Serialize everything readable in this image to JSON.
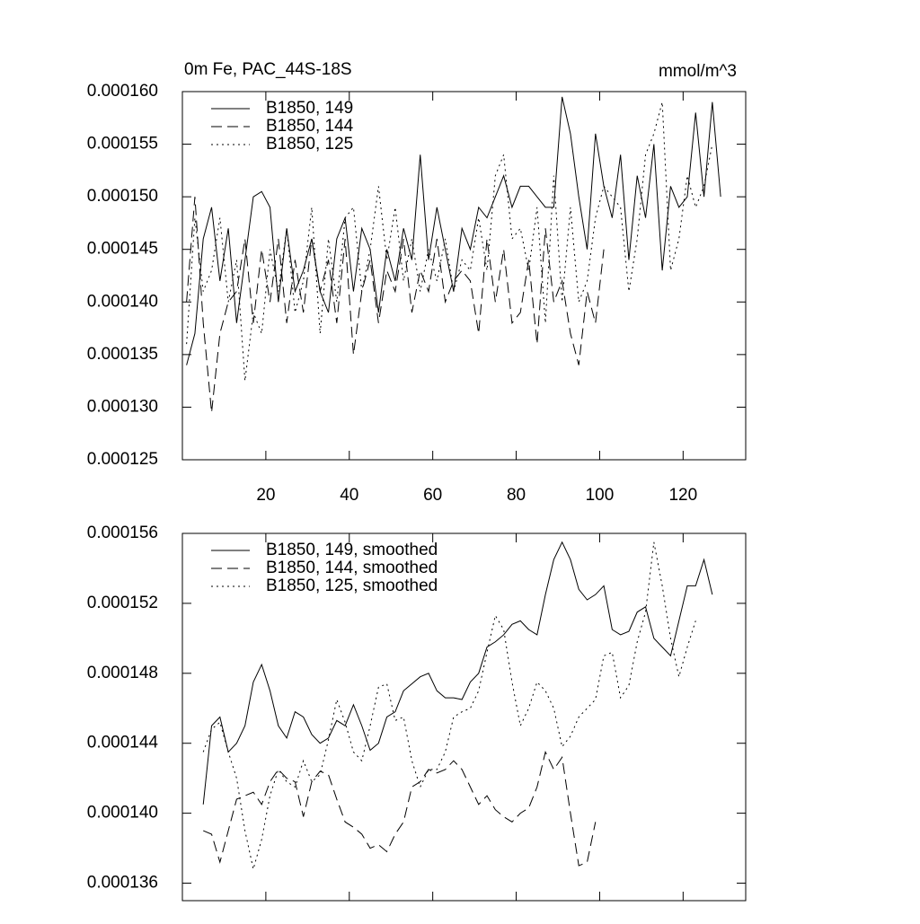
{
  "chart_data": [
    {
      "type": "line",
      "title": "0m Fe, PAC_44S-18S",
      "units_label": "mmol/m^3",
      "x": [
        1,
        3,
        5,
        7,
        9,
        11,
        13,
        15,
        17,
        19,
        21,
        23,
        25,
        27,
        29,
        31,
        33,
        35,
        37,
        39,
        41,
        43,
        45,
        47,
        49,
        51,
        53,
        55,
        57,
        59,
        61,
        63,
        65,
        67,
        69,
        71,
        73,
        75,
        77,
        79,
        81,
        83,
        85,
        87,
        89,
        91,
        93,
        95,
        97,
        99,
        101,
        103,
        105,
        107,
        109,
        111,
        113,
        115,
        117,
        119,
        121,
        123,
        125,
        127,
        129
      ],
      "xlim": [
        0,
        135
      ],
      "xticks": [
        20,
        40,
        60,
        80,
        100,
        120
      ],
      "ylim": [
        0.000125,
        0.00016
      ],
      "yticks": [
        {
          "value": 0.000125,
          "label": "0.000125"
        },
        {
          "value": 0.00013,
          "label": "0.000130"
        },
        {
          "value": 0.000135,
          "label": "0.000135"
        },
        {
          "value": 0.00014,
          "label": "0.000140"
        },
        {
          "value": 0.000145,
          "label": "0.000145"
        },
        {
          "value": 0.00015,
          "label": "0.000150"
        },
        {
          "value": 0.000155,
          "label": "0.000155"
        },
        {
          "value": 0.00016,
          "label": "0.000160"
        }
      ],
      "series": [
        {
          "name": "B1850, 149",
          "color": "#000000",
          "dash": "solid",
          "values": [
            0.000134,
            0.000137,
            0.000146,
            0.000149,
            0.000142,
            0.000147,
            0.000138,
            0.000144,
            0.00015,
            0.0001505,
            0.000149,
            0.00014,
            0.000147,
            0.000141,
            0.000143,
            0.000146,
            0.000141,
            0.000139,
            0.000146,
            0.000148,
            0.000141,
            0.000147,
            0.000145,
            0.000139,
            0.000145,
            0.000142,
            0.000147,
            0.000144,
            0.000154,
            0.000144,
            0.000149,
            0.000145,
            0.000141,
            0.000147,
            0.000145,
            0.000149,
            0.000148,
            0.00015,
            0.000152,
            0.000149,
            0.000151,
            0.000151,
            0.00015,
            0.000149,
            0.000149,
            0.0001595,
            0.000156,
            0.00015,
            0.000145,
            0.000156,
            0.000151,
            0.000148,
            0.000154,
            0.000144,
            0.000152,
            0.000148,
            0.000155,
            0.000143,
            0.000151,
            0.000149,
            0.00015,
            0.000158,
            0.00015,
            0.000159,
            0.00015
          ]
        },
        {
          "name": "B1850, 144",
          "color": "#000000",
          "dash": "dashed",
          "values": [
            0.00014,
            0.00015,
            0.000138,
            0.0001295,
            0.000137,
            0.00014,
            0.000141,
            0.000146,
            0.000138,
            0.000145,
            0.00014,
            0.000146,
            0.000138,
            0.000144,
            0.000139,
            0.000146,
            0.000141,
            0.000144,
            0.000138,
            0.000146,
            0.000135,
            0.000141,
            0.000144,
            0.000138,
            0.000143,
            0.000141,
            0.000146,
            0.000139,
            0.000143,
            0.000141,
            0.000146,
            0.00014,
            0.000142,
            0.000143,
            0.000142,
            0.000137,
            0.000146,
            0.00014,
            0.000145,
            0.000138,
            0.000139,
            0.000144,
            0.000136,
            0.000147,
            0.00014,
            0.000142,
            0.000137,
            0.000134,
            0.000141,
            0.000138,
            0.000145,
            null,
            null,
            null,
            null,
            null,
            null,
            null,
            null,
            null,
            null,
            null,
            null,
            null,
            null
          ]
        },
        {
          "name": "B1850, 125",
          "color": "#000000",
          "dash": "dotted",
          "values": [
            0.000136,
            0.000148,
            0.000141,
            0.000143,
            0.000148,
            0.00014,
            0.000144,
            0.0001325,
            0.000139,
            0.000137,
            0.000145,
            0.000141,
            0.000147,
            0.000139,
            0.000142,
            0.000149,
            0.000137,
            0.000146,
            0.00014,
            0.000148,
            0.000149,
            0.000141,
            0.000145,
            0.000151,
            0.000144,
            0.000149,
            0.000142,
            0.000146,
            0.000141,
            0.000145,
            0.000142,
            0.000146,
            0.000141,
            0.000144,
            0.000143,
            0.000148,
            0.000143,
            0.000152,
            0.000154,
            0.000146,
            0.000147,
            0.000143,
            0.000149,
            0.000138,
            0.000152,
            0.00014,
            0.000149,
            0.00014,
            0.000142,
            0.000148,
            0.000151,
            0.00015,
            0.000149,
            0.000141,
            0.000146,
            0.000154,
            0.000156,
            0.000159,
            0.000143,
            0.000146,
            0.000152,
            0.000149,
            0.000151,
            0.000155,
            null
          ]
        }
      ]
    },
    {
      "type": "line",
      "x": [
        1,
        3,
        5,
        7,
        9,
        11,
        13,
        15,
        17,
        19,
        21,
        23,
        25,
        27,
        29,
        31,
        33,
        35,
        37,
        39,
        41,
        43,
        45,
        47,
        49,
        51,
        53,
        55,
        57,
        59,
        61,
        63,
        65,
        67,
        69,
        71,
        73,
        75,
        77,
        79,
        81,
        83,
        85,
        87,
        89,
        91,
        93,
        95,
        97,
        99,
        101,
        103,
        105,
        107,
        109,
        111,
        113,
        115,
        117,
        119,
        121,
        123,
        125,
        127,
        129
      ],
      "xlim": [
        0,
        135
      ],
      "xticks": [
        20,
        40,
        60,
        80,
        100,
        120
      ],
      "ylim": [
        0.000135,
        0.000156
      ],
      "yticks": [
        {
          "value": 0.000136,
          "label": "0.000136"
        },
        {
          "value": 0.00014,
          "label": "0.000140"
        },
        {
          "value": 0.000144,
          "label": "0.000144"
        },
        {
          "value": 0.000148,
          "label": "0.000148"
        },
        {
          "value": 0.000152,
          "label": "0.000152"
        },
        {
          "value": 0.000156,
          "label": "0.000156"
        }
      ],
      "series": [
        {
          "name": "B1850, 149, smoothed",
          "color": "#000000",
          "dash": "solid",
          "values": [
            null,
            null,
            0.0001405,
            0.000145,
            0.0001455,
            0.0001435,
            0.000144,
            0.000145,
            0.0001475,
            0.0001485,
            0.000147,
            0.000145,
            0.0001443,
            0.0001458,
            0.0001455,
            0.0001445,
            0.000144,
            0.0001443,
            0.0001453,
            0.000145,
            0.0001462,
            0.000145,
            0.0001436,
            0.000144,
            0.0001455,
            0.0001458,
            0.000147,
            0.0001474,
            0.0001478,
            0.000148,
            0.000147,
            0.0001466,
            0.0001466,
            0.0001465,
            0.0001475,
            0.000148,
            0.0001495,
            0.0001498,
            0.0001502,
            0.0001508,
            0.000151,
            0.0001505,
            0.0001502,
            0.0001525,
            0.0001545,
            0.0001555,
            0.0001545,
            0.0001528,
            0.0001522,
            0.0001525,
            0.000153,
            0.0001505,
            0.0001502,
            0.0001504,
            0.0001515,
            0.0001518,
            0.00015,
            0.0001495,
            0.000149,
            0.000151,
            0.000153,
            0.000153,
            0.0001545,
            0.0001525,
            null
          ]
        },
        {
          "name": "B1850, 144, smoothed",
          "color": "#000000",
          "dash": "dashed",
          "values": [
            null,
            null,
            0.000139,
            0.0001388,
            0.0001372,
            0.000139,
            0.0001408,
            0.000141,
            0.0001412,
            0.0001405,
            0.0001418,
            0.0001425,
            0.000142,
            0.0001418,
            0.0001398,
            0.0001418,
            0.0001424,
            0.0001422,
            0.0001408,
            0.0001395,
            0.0001392,
            0.0001388,
            0.000138,
            0.0001382,
            0.0001378,
            0.0001388,
            0.0001395,
            0.0001415,
            0.0001418,
            0.0001425,
            0.0001423,
            0.0001425,
            0.000143,
            0.0001425,
            0.0001415,
            0.0001405,
            0.000141,
            0.0001402,
            0.0001398,
            0.0001395,
            0.00014,
            0.0001403,
            0.0001415,
            0.0001435,
            0.0001425,
            0.0001432,
            0.00014,
            0.000137,
            0.0001372,
            0.0001395,
            null,
            null,
            null,
            null,
            null,
            null,
            null,
            null,
            null,
            null,
            null,
            null,
            null,
            null,
            null
          ]
        },
        {
          "name": "B1850, 125, smoothed",
          "color": "#000000",
          "dash": "dotted",
          "values": [
            null,
            null,
            0.0001435,
            0.0001448,
            0.0001452,
            0.0001435,
            0.000142,
            0.000139,
            0.0001368,
            0.0001385,
            0.000141,
            0.0001425,
            0.0001418,
            0.0001415,
            0.000143,
            0.0001418,
            0.0001422,
            0.0001442,
            0.0001465,
            0.0001452,
            0.0001435,
            0.000143,
            0.000145,
            0.0001472,
            0.0001474,
            0.0001453,
            0.0001455,
            0.000143,
            0.0001415,
            0.0001425,
            0.0001425,
            0.0001435,
            0.0001455,
            0.0001458,
            0.000146,
            0.000147,
            0.0001492,
            0.0001513,
            0.0001505,
            0.0001475,
            0.000145,
            0.000146,
            0.0001475,
            0.000147,
            0.000146,
            0.0001438,
            0.0001444,
            0.0001455,
            0.000146,
            0.0001465,
            0.000149,
            0.0001492,
            0.0001466,
            0.0001473,
            0.0001498,
            0.0001515,
            0.0001555,
            0.000153,
            0.00015,
            0.0001478,
            0.0001495,
            0.000151,
            null,
            null,
            null
          ]
        }
      ]
    }
  ]
}
